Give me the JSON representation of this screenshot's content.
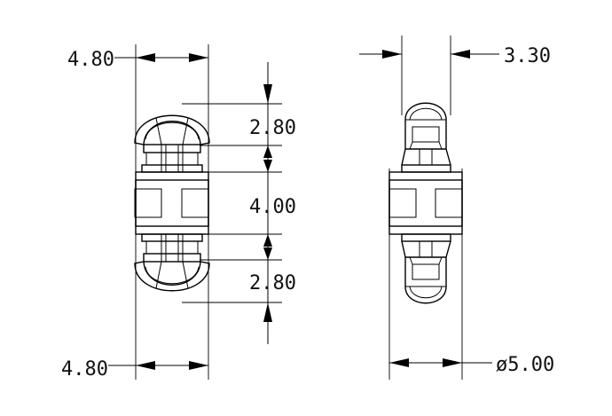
{
  "drawing": {
    "front_view": {
      "top_width_label": "4.80",
      "bottom_width_label": "4.80",
      "upper_clip_height_label": "2.80",
      "body_height_label": "4.00",
      "lower_clip_height_label": "2.80"
    },
    "side_view": {
      "thickness_label": "3.30",
      "diameter_label": "ø5.00"
    }
  },
  "colors": {
    "line": "#000000",
    "background": "#ffffff"
  }
}
